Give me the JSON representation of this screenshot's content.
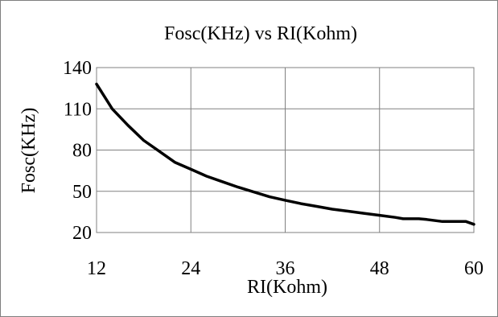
{
  "chart_data": {
    "type": "line",
    "title": "Fosc(KHz) vs RI(Kohm)",
    "xlabel": "RI(Kohm)",
    "ylabel": "Fosc(KHz)",
    "xlim": [
      12,
      60
    ],
    "ylim": [
      20,
      140
    ],
    "x_ticks": [
      12,
      24,
      36,
      48,
      60
    ],
    "y_ticks": [
      20,
      50,
      80,
      110,
      140
    ],
    "grid": true,
    "legend": "none",
    "colors": {
      "line": "#000000",
      "grid": "#808080",
      "frame": "#7f7f7f"
    },
    "series": [
      {
        "x": [
          12,
          13,
          14,
          16,
          18,
          20,
          22,
          24,
          26,
          28,
          30,
          32,
          34,
          36,
          38,
          40,
          42,
          44,
          46,
          48,
          50,
          51,
          52,
          53,
          54,
          56,
          57,
          58,
          59,
          60
        ],
        "values": [
          128,
          119,
          110,
          98,
          87,
          79,
          71,
          66,
          61,
          57,
          53,
          49.5,
          46,
          43.5,
          41,
          39,
          37,
          35.5,
          34,
          32.5,
          31,
          30,
          30,
          30,
          29.5,
          28,
          28,
          28,
          28,
          26
        ]
      }
    ]
  }
}
